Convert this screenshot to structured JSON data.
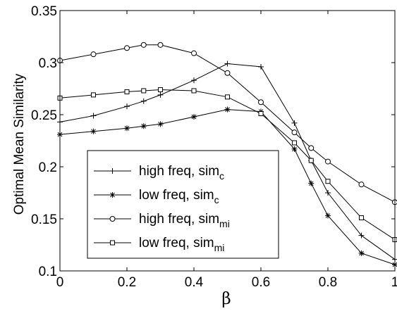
{
  "chart_data": {
    "type": "line",
    "xlabel": "β",
    "ylabel": "Optimal Mean Similarity",
    "xlim": [
      0,
      1
    ],
    "ylim": [
      0.1,
      0.35
    ],
    "xticks": [
      "0",
      "0.2",
      "0.4",
      "0.6",
      "0.8",
      "1"
    ],
    "yticks": [
      "0.1",
      "0.15",
      "0.2",
      "0.25",
      "0.3",
      "0.35"
    ],
    "legend_position": "lower-left",
    "grid": false,
    "x": [
      0,
      0.1,
      0.2,
      0.25,
      0.3,
      0.4,
      0.5,
      0.6,
      0.7,
      0.75,
      0.8,
      0.9,
      1.0
    ],
    "series": [
      {
        "name": "high freq, sim_c",
        "label_main": "high freq, sim",
        "label_sub": "c",
        "marker": "plus",
        "values": [
          0.243,
          0.249,
          0.258,
          0.263,
          0.269,
          0.283,
          0.299,
          0.296,
          0.242,
          0.206,
          0.175,
          0.134,
          0.111
        ]
      },
      {
        "name": "low freq, sim_c",
        "label_main": "low freq, sim",
        "label_sub": "c",
        "marker": "star",
        "values": [
          0.231,
          0.234,
          0.237,
          0.239,
          0.241,
          0.248,
          0.255,
          0.253,
          0.217,
          0.184,
          0.153,
          0.117,
          0.106
        ]
      },
      {
        "name": "high freq, sim_mi",
        "label_main": "high freq, sim",
        "label_sub": "mi",
        "marker": "circle",
        "values": [
          0.302,
          0.308,
          0.314,
          0.317,
          0.317,
          0.309,
          0.29,
          0.262,
          0.233,
          0.218,
          0.205,
          0.183,
          0.166
        ]
      },
      {
        "name": "low freq, sim_mi",
        "label_main": "low freq, sim",
        "label_sub": "mi",
        "marker": "square",
        "values": [
          0.266,
          0.269,
          0.272,
          0.273,
          0.274,
          0.273,
          0.267,
          0.251,
          0.223,
          0.206,
          0.186,
          0.151,
          0.13
        ]
      }
    ]
  }
}
